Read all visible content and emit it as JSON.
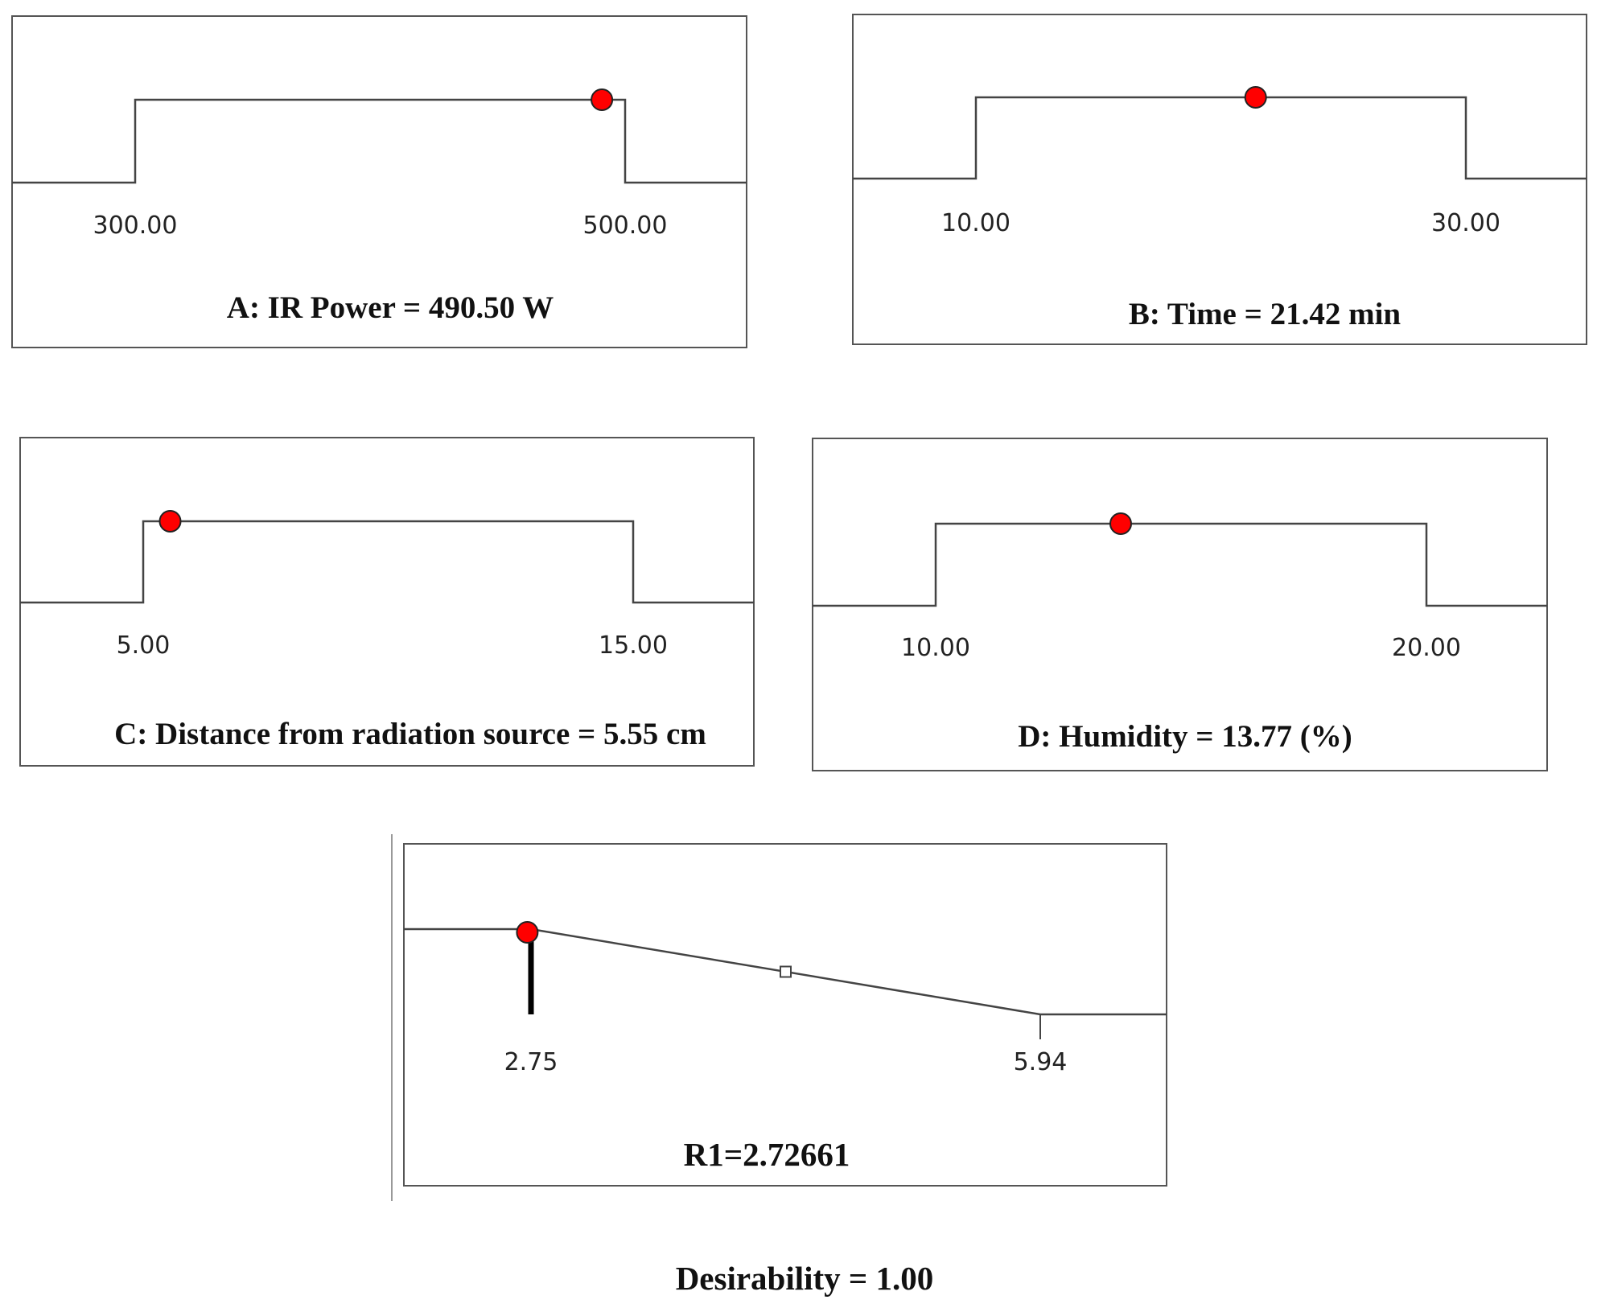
{
  "colors": {
    "marker": "#ff0000",
    "line": "#444444",
    "frame": "#555555"
  },
  "chart_data": [
    {
      "type": "ramp",
      "factor": "A: IR Power",
      "low": 300.0,
      "high": 500.0,
      "tick_labels": [
        "300.00",
        "500.00"
      ],
      "value": 490.5,
      "caption": "A: IR Power = 490.50 W"
    },
    {
      "type": "ramp",
      "factor": "B: Time",
      "low": 10.0,
      "high": 30.0,
      "tick_labels": [
        "10.00",
        "30.00"
      ],
      "value": 21.42,
      "caption": "B: Time = 21.42 min"
    },
    {
      "type": "ramp",
      "factor": "C: Distance from radiation source",
      "low": 5.0,
      "high": 15.0,
      "tick_labels": [
        "5.00",
        "15.00"
      ],
      "value": 5.55,
      "caption": "C: Distance from radiation source = 5.55 cm"
    },
    {
      "type": "ramp",
      "factor": "D: Humidity",
      "low": 10.0,
      "high": 20.0,
      "tick_labels": [
        "10.00",
        "20.00"
      ],
      "value": 13.77,
      "caption": "D: Humidity = 13.77 (%)"
    },
    {
      "type": "ramp",
      "response": "R1",
      "goal": "minimize",
      "low": 2.75,
      "high": 5.94,
      "tick_labels": [
        "2.75",
        "5.94"
      ],
      "value": 2.72661,
      "caption": "R1=2.72661"
    }
  ],
  "desirability": "Desirability = 1.00"
}
